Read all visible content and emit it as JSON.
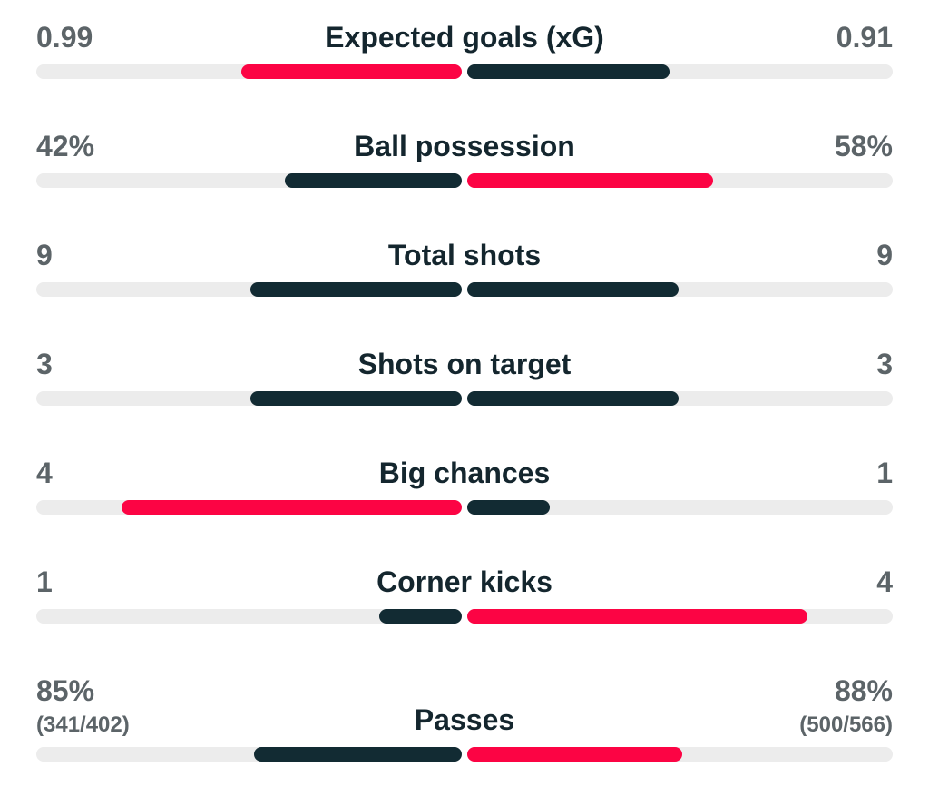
{
  "colors": {
    "highlight": "#FC0444",
    "neutral": "#122B33",
    "track": "#ECECEC",
    "value_text": "#5C6468",
    "title_text": "#14262E",
    "background": "#FFFFFF"
  },
  "chart_data": {
    "type": "bar",
    "subtype": "paired-horizontal-comparison",
    "legend_position": "none",
    "grid": false,
    "bar_rule": "each side fill width is proportional to value/(left+right) of the half track, anchored at center; winning side colored highlight red, otherwise dark neutral",
    "rows": [
      {
        "label": "Expected goals (xG)",
        "left_value": "0.99",
        "right_value": "0.91",
        "left_num": 0.99,
        "right_num": 0.91,
        "left_sub": "",
        "right_sub": "",
        "highlight": "left"
      },
      {
        "label": "Ball possession",
        "left_value": "42%",
        "right_value": "58%",
        "left_num": 42,
        "right_num": 58,
        "left_sub": "",
        "right_sub": "",
        "highlight": "right"
      },
      {
        "label": "Total shots",
        "left_value": "9",
        "right_value": "9",
        "left_num": 9,
        "right_num": 9,
        "left_sub": "",
        "right_sub": "",
        "highlight": "none"
      },
      {
        "label": "Shots on target",
        "left_value": "3",
        "right_value": "3",
        "left_num": 3,
        "right_num": 3,
        "left_sub": "",
        "right_sub": "",
        "highlight": "none"
      },
      {
        "label": "Big chances",
        "left_value": "4",
        "right_value": "1",
        "left_num": 4,
        "right_num": 1,
        "left_sub": "",
        "right_sub": "",
        "highlight": "left"
      },
      {
        "label": "Corner kicks",
        "left_value": "1",
        "right_value": "4",
        "left_num": 1,
        "right_num": 4,
        "left_sub": "",
        "right_sub": "",
        "highlight": "right"
      },
      {
        "label": "Passes",
        "left_value": "85%",
        "right_value": "88%",
        "left_num": 85,
        "right_num": 88,
        "left_sub": "(341/402)",
        "right_sub": "(500/566)",
        "highlight": "right"
      }
    ]
  }
}
